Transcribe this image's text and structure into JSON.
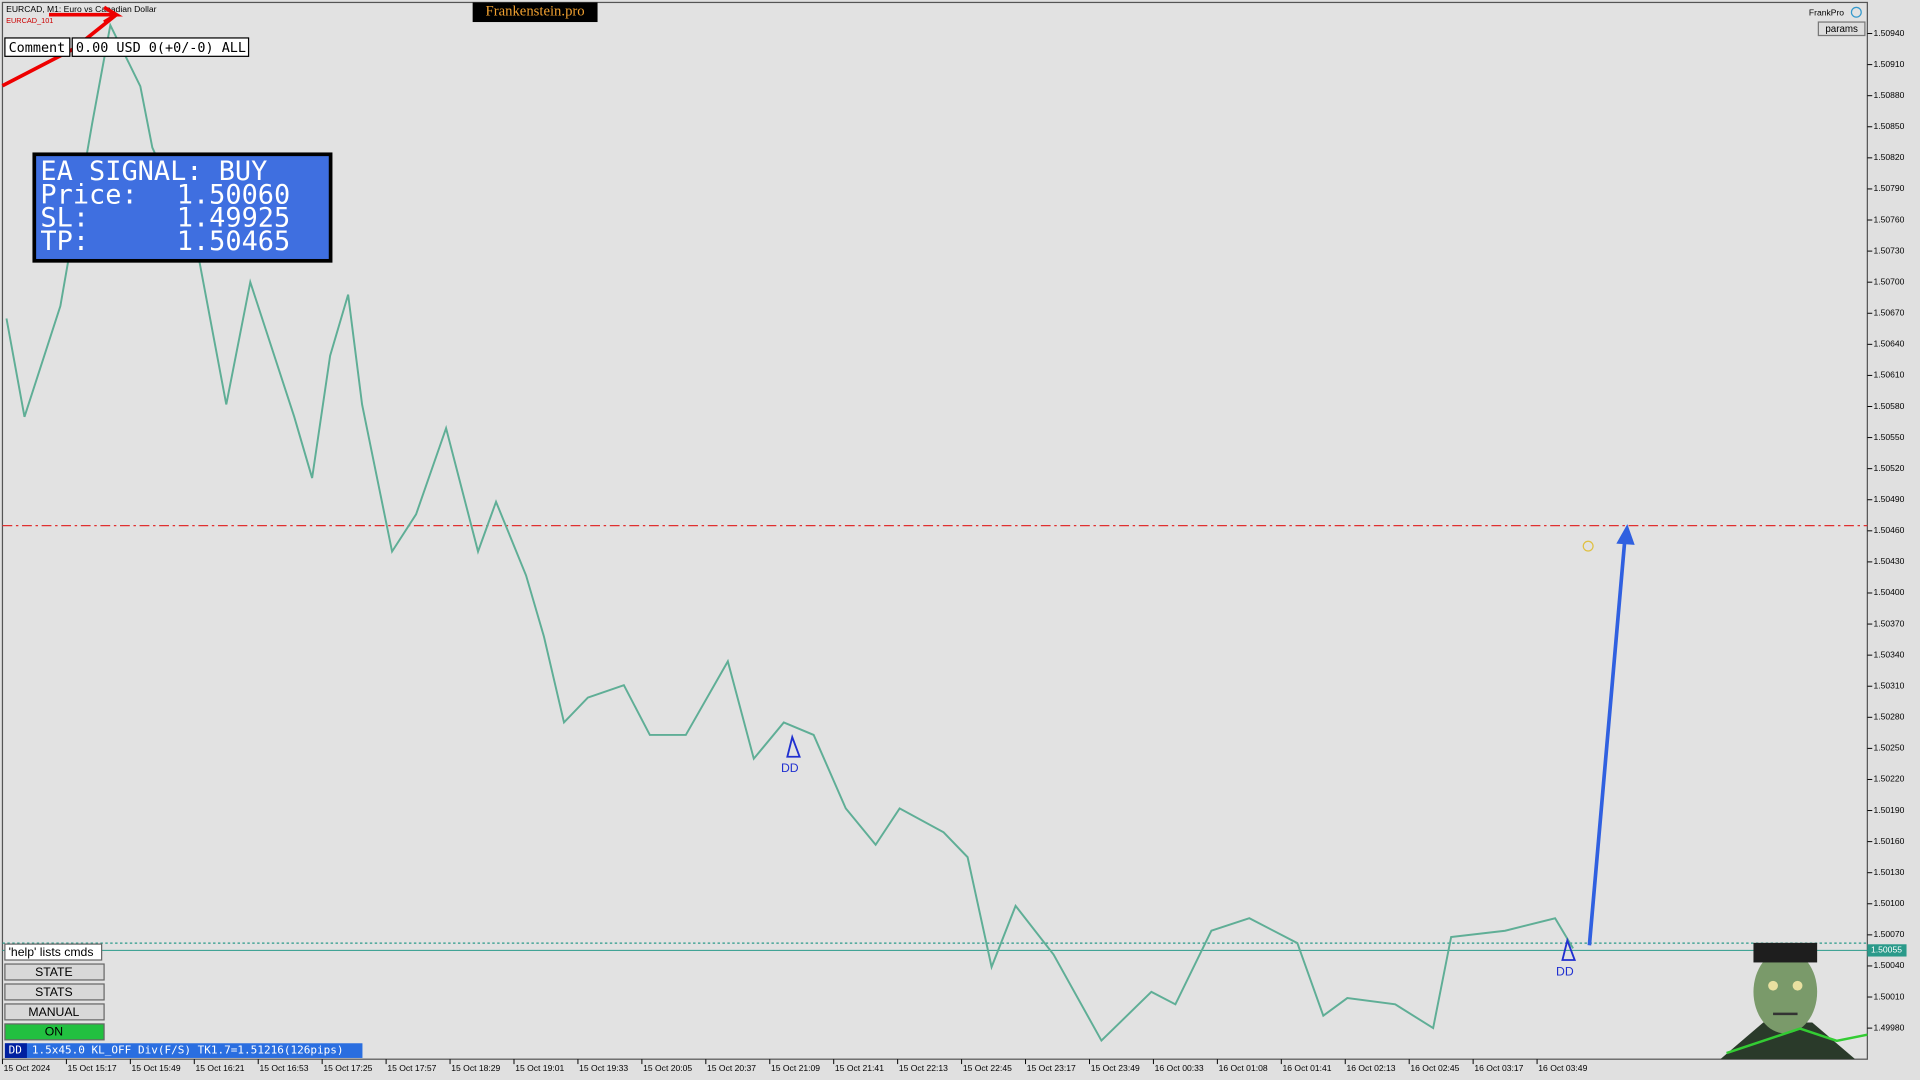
{
  "header": {
    "symbol": "EURCAD, M1:  Euro vs Canadian Dollar",
    "ea_name": "EURCAD_101",
    "brand": "Frankenstein.pro",
    "account": "FrankPro",
    "params": "params"
  },
  "comment": {
    "label": "Comment",
    "text": "0.00 USD 0(+0/-0) ALL"
  },
  "signal": {
    "title": "EA SIGNAL: BUY",
    "rows": [
      {
        "label": "Price:",
        "value": "1.50060"
      },
      {
        "label": "SL:",
        "value": "1.49925"
      },
      {
        "label": "TP:",
        "value": "1.50465"
      }
    ]
  },
  "markers": [
    "DD",
    "DD"
  ],
  "buttons": [
    "'help' lists cmds",
    "STATE",
    "STATS",
    "MANUAL",
    "ON"
  ],
  "status": {
    "tag": "DD",
    "text": "1.5x45.0 KL_OFF Div(F/S) TK1.7=1.51216(126pips)"
  },
  "chart_data": {
    "type": "line",
    "price_tag": {
      "value": 1.50055,
      "label": "1.50055"
    },
    "tp_level": 1.50465,
    "bid_level": 1.50062,
    "xlim": [
      0,
      800
    ],
    "ylim": [
      1.4995,
      1.5097
    ],
    "categories": [
      "15 Oct 2024",
      "15 Oct 15:17",
      "15 Oct 15:49",
      "15 Oct 16:21",
      "15 Oct 16:53",
      "15 Oct 17:25",
      "15 Oct 17:57",
      "15 Oct 18:29",
      "15 Oct 19:01",
      "15 Oct 19:33",
      "15 Oct 20:05",
      "15 Oct 20:37",
      "15 Oct 21:09",
      "15 Oct 21:41",
      "15 Oct 22:13",
      "15 Oct 22:45",
      "15 Oct 23:17",
      "15 Oct 23:49",
      "16 Oct 00:33",
      "16 Oct 01:08",
      "16 Oct 01:41",
      "16 Oct 02:13",
      "16 Oct 02:45",
      "16 Oct 03:17",
      "16 Oct 03:49"
    ],
    "series": [
      {
        "name": "EURCAD",
        "color": "#5fae96",
        "x": [
          2,
          11,
          29,
          45,
          54,
          69,
          75,
          97,
          112,
          124,
          146,
          155,
          164,
          173,
          180,
          195,
          207,
          222,
          238,
          247,
          262,
          271,
          281,
          293,
          311,
          324,
          342,
          363,
          376,
          391,
          406,
          422,
          437,
          449,
          471,
          483,
          495,
          507,
          526,
          550,
          575,
          587,
          605,
          624,
          648,
          661,
          673,
          697,
          716,
          725,
          752,
          777,
          786
        ],
        "values": [
          1.50665,
          1.5057,
          1.50677,
          1.50854,
          1.50948,
          1.50889,
          1.5083,
          1.50736,
          1.50582,
          1.507,
          1.5057,
          1.50511,
          1.50629,
          1.50688,
          1.50582,
          1.5044,
          1.50476,
          1.50559,
          1.5044,
          1.50488,
          1.50417,
          1.50358,
          1.50275,
          1.50299,
          1.50311,
          1.50263,
          1.50263,
          1.50334,
          1.5024,
          1.50275,
          1.50263,
          1.50192,
          1.50157,
          1.50192,
          1.50169,
          1.50145,
          1.50039,
          1.50098,
          1.50051,
          1.49968,
          1.50015,
          1.50003,
          1.50074,
          1.50086,
          1.50062,
          1.49992,
          1.50009,
          1.50003,
          1.4998,
          1.50068,
          1.50074,
          1.50086,
          1.50057
        ]
      }
    ],
    "yticks": [
      {
        "value": 1.5094,
        "label": "1.50940"
      },
      {
        "value": 1.5091,
        "label": "1.50910"
      },
      {
        "value": 1.5088,
        "label": "1.50880"
      },
      {
        "value": 1.5085,
        "label": "1.50850"
      },
      {
        "value": 1.5082,
        "label": "1.50820"
      },
      {
        "value": 1.5079,
        "label": "1.50790"
      },
      {
        "value": 1.5076,
        "label": "1.50760"
      },
      {
        "value": 1.5073,
        "label": "1.50730"
      },
      {
        "value": 1.507,
        "label": "1.50700"
      },
      {
        "value": 1.5067,
        "label": "1.50670"
      },
      {
        "value": 1.5064,
        "label": "1.50640"
      },
      {
        "value": 1.5061,
        "label": "1.50610"
      },
      {
        "value": 1.5058,
        "label": "1.50580"
      },
      {
        "value": 1.5055,
        "label": "1.50550"
      },
      {
        "value": 1.5052,
        "label": "1.50520"
      },
      {
        "value": 1.5049,
        "label": "1.50490"
      },
      {
        "value": 1.5046,
        "label": "1.50460"
      },
      {
        "value": 1.5043,
        "label": "1.50430"
      },
      {
        "value": 1.504,
        "label": "1.50400"
      },
      {
        "value": 1.5037,
        "label": "1.50370"
      },
      {
        "value": 1.5034,
        "label": "1.50340"
      },
      {
        "value": 1.5031,
        "label": "1.50310"
      },
      {
        "value": 1.5028,
        "label": "1.50280"
      },
      {
        "value": 1.5025,
        "label": "1.50250"
      },
      {
        "value": 1.5022,
        "label": "1.50220"
      },
      {
        "value": 1.5019,
        "label": "1.50190"
      },
      {
        "value": 1.5016,
        "label": "1.50160"
      },
      {
        "value": 1.5013,
        "label": "1.50130"
      },
      {
        "value": 1.501,
        "label": "1.50100"
      },
      {
        "value": 1.5007,
        "label": "1.50070"
      },
      {
        "value": 1.5004,
        "label": "1.50040"
      },
      {
        "value": 1.5001,
        "label": "1.50010"
      },
      {
        "value": 1.4998,
        "label": "1.49980"
      }
    ]
  }
}
